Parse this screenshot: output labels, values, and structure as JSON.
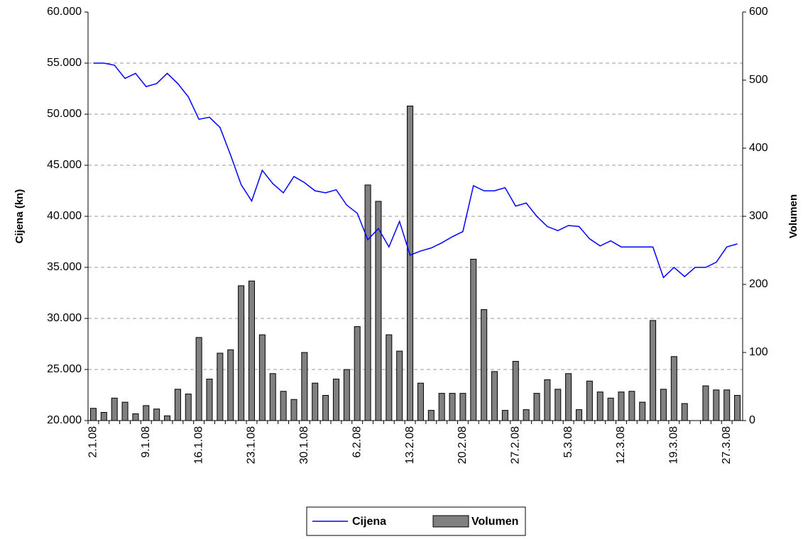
{
  "chart_data": {
    "type": "combo",
    "y_label": "Cijena (kn)",
    "y2_label": "Volumen",
    "categories": [
      "2.1.08",
      null,
      null,
      null,
      null,
      "9.1.08",
      null,
      null,
      null,
      null,
      "16.1.08",
      null,
      null,
      null,
      null,
      "23.1.08",
      null,
      null,
      null,
      null,
      "30.1.08",
      null,
      null,
      null,
      null,
      "6.2.08",
      null,
      null,
      null,
      null,
      "13.2.08",
      null,
      null,
      null,
      null,
      "20.2.08",
      null,
      null,
      null,
      null,
      "27.2.08",
      null,
      null,
      null,
      null,
      "5.3.08",
      null,
      null,
      null,
      null,
      "12.3.08",
      null,
      null,
      null,
      null,
      "19.3.08",
      null,
      null,
      null,
      null,
      "27.3.08",
      null
    ],
    "series": [
      {
        "name": "Cijena",
        "type": "line",
        "color": "#0000ff",
        "values": [
          55000,
          55000,
          54800,
          53500,
          54000,
          52700,
          53000,
          54000,
          53000,
          51700,
          49500,
          49700,
          48700,
          46000,
          43100,
          41500,
          44500,
          43200,
          42300,
          43900,
          43300,
          42500,
          42300,
          42600,
          41100,
          40300,
          37700,
          38800,
          37000,
          39500,
          36200,
          36600,
          36900,
          37400,
          38000,
          38500,
          43000,
          42500,
          42500,
          42800,
          41000,
          41300,
          40000,
          39000,
          38600,
          39100,
          39000,
          37800,
          37100,
          37600,
          37000,
          37000,
          37000,
          37000,
          34000,
          35000,
          34100,
          35000,
          35000,
          35500,
          37000,
          37300
        ]
      },
      {
        "name": "Volumen",
        "type": "bar",
        "axis": "y2",
        "color": "#808080",
        "values": [
          18,
          12,
          33,
          27,
          10,
          22,
          17,
          7,
          46,
          39,
          122,
          61,
          99,
          104,
          198,
          205,
          126,
          69,
          43,
          31,
          100,
          55,
          37,
          61,
          75,
          138,
          346,
          322,
          126,
          102,
          462,
          55,
          15,
          40,
          40,
          40,
          237,
          163,
          72,
          15,
          87,
          16,
          40,
          60,
          46,
          69,
          16,
          58,
          42,
          33,
          42,
          43,
          27,
          147,
          46,
          94,
          25,
          0,
          51,
          45,
          45,
          37
        ]
      }
    ],
    "ylim": [
      20000,
      60000
    ],
    "yticks": [
      {
        "value": 20000,
        "label": "20.000"
      },
      {
        "value": 25000,
        "label": "25.000"
      },
      {
        "value": 30000,
        "label": "30.000"
      },
      {
        "value": 35000,
        "label": "35.000"
      },
      {
        "value": 40000,
        "label": "40.000"
      },
      {
        "value": 45000,
        "label": "45.000"
      },
      {
        "value": 50000,
        "label": "50.000"
      },
      {
        "value": 55000,
        "label": "55.000"
      },
      {
        "value": 60000,
        "label": "60.000"
      }
    ],
    "y2lim": [
      0,
      600
    ],
    "y2ticks": [
      0,
      100,
      200,
      300,
      400,
      500,
      600
    ],
    "grid": true,
    "legend": "bottom"
  }
}
